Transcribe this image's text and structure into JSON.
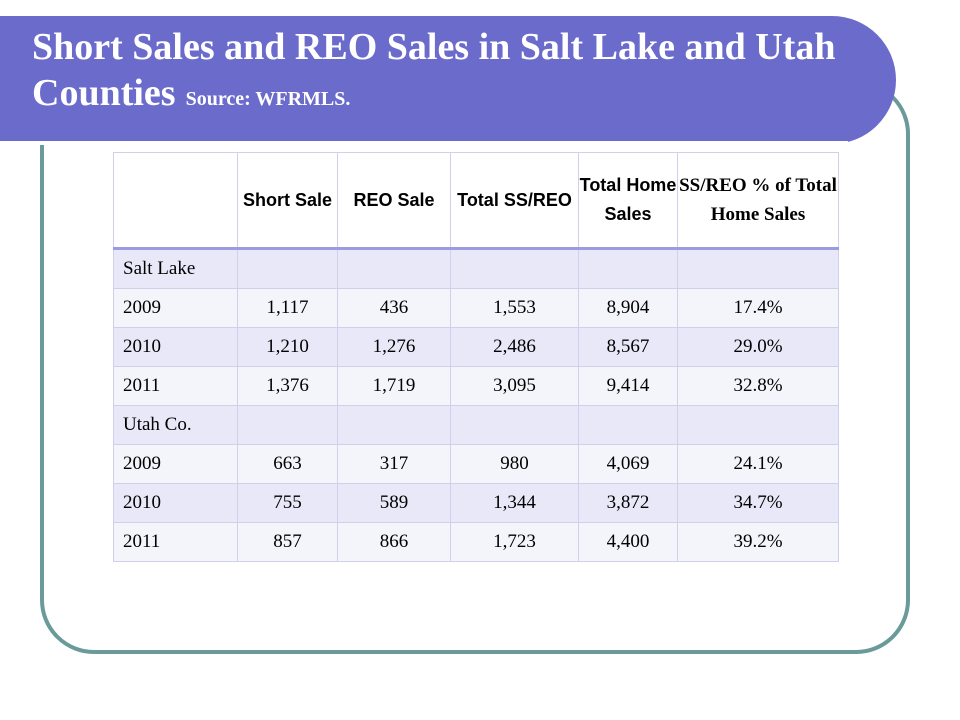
{
  "title": {
    "main": "Short Sales and REO Sales in Salt Lake and Utah Counties",
    "source": "Source: WFRMLS."
  },
  "table": {
    "headers": [
      "",
      "Short Sale",
      "REO Sale",
      "Total SS/REO",
      "Total Home Sales",
      "SS/REO % of Total Home Sales"
    ],
    "rows": [
      [
        "Salt Lake",
        "",
        "",
        "",
        "",
        ""
      ],
      [
        "2009",
        "1,117",
        "436",
        "1,553",
        "8,904",
        "17.4%"
      ],
      [
        "2010",
        "1,210",
        "1,276",
        "2,486",
        "8,567",
        "29.0%"
      ],
      [
        "2011",
        "1,376",
        "1,719",
        "3,095",
        "9,414",
        "32.8%"
      ],
      [
        "Utah Co.",
        "",
        "",
        "",
        "",
        ""
      ],
      [
        "2009",
        "663",
        "317",
        "980",
        "4,069",
        "24.1%"
      ],
      [
        "2010",
        "755",
        "589",
        "1,344",
        "3,872",
        "34.7%"
      ],
      [
        "2011",
        "857",
        "866",
        "1,723",
        "4,400",
        "39.2%"
      ]
    ]
  },
  "colors": {
    "banner": "#6b6bcc",
    "frame": "#6a9a99",
    "row_odd": "#e8e8f8",
    "row_even": "#f4f4fb",
    "header_rule": "#9a9be0"
  }
}
